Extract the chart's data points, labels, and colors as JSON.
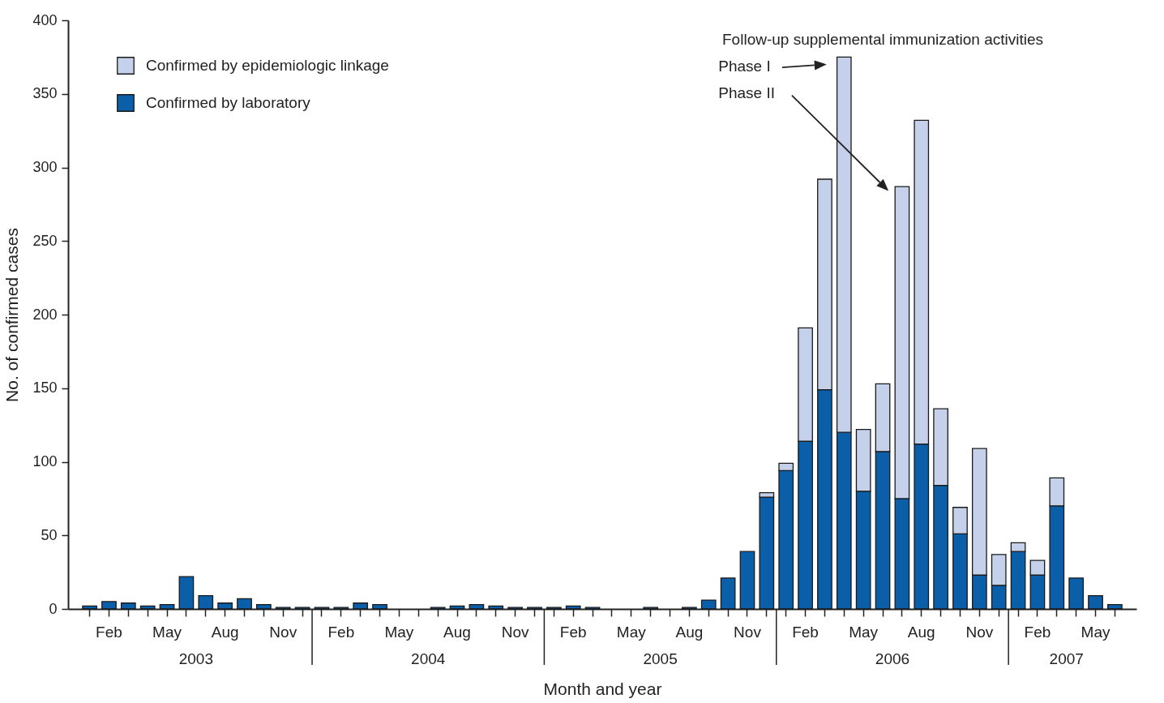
{
  "chart_data": {
    "type": "bar",
    "stacked": true,
    "xlabel": "Month and year",
    "ylabel": "No. of confirmed cases",
    "categories": [
      null,
      "Feb",
      null,
      null,
      "May",
      null,
      null,
      "Aug",
      null,
      null,
      "Nov",
      null,
      null,
      "Feb",
      null,
      null,
      "May",
      null,
      null,
      "Aug",
      null,
      null,
      "Nov",
      null,
      null,
      "Feb",
      null,
      null,
      "May",
      null,
      null,
      "Aug",
      null,
      null,
      "Nov",
      null,
      null,
      "Feb",
      null,
      null,
      "May",
      null,
      null,
      "Aug",
      null,
      null,
      "Nov",
      null,
      null,
      "Feb",
      null,
      null,
      "May",
      null
    ],
    "series": [
      {
        "name": "Confirmed by laboratory",
        "color": "#0b5ea8",
        "values": [
          2,
          5,
          4,
          2,
          3,
          22,
          9,
          4,
          7,
          3,
          1,
          1,
          1,
          1,
          4,
          3,
          null,
          null,
          1,
          2,
          3,
          2,
          1,
          1,
          1,
          2,
          1,
          null,
          null,
          1,
          null,
          1,
          6,
          21,
          39,
          76,
          94,
          114,
          149,
          120,
          80,
          107,
          75,
          112,
          84,
          51,
          23,
          16,
          39,
          23,
          70,
          21,
          9,
          3
        ]
      },
      {
        "name": "Confirmed by epidemiologic linkage",
        "color": "#c5d0ea",
        "values": [
          null,
          null,
          null,
          null,
          null,
          null,
          null,
          null,
          null,
          null,
          null,
          null,
          null,
          null,
          null,
          null,
          null,
          null,
          null,
          null,
          null,
          null,
          null,
          null,
          null,
          null,
          null,
          null,
          null,
          null,
          null,
          null,
          null,
          null,
          null,
          3,
          5,
          77,
          143,
          255,
          42,
          46,
          212,
          220,
          52,
          18,
          86,
          21,
          6,
          10,
          19,
          null,
          null,
          null
        ]
      }
    ],
    "ylim": [
      0,
      400
    ],
    "yticks": [
      0,
      50,
      100,
      150,
      200,
      250,
      300,
      350,
      400
    ],
    "legend": "top left",
    "annotations": [
      "Follow-up supplemental immunization activities",
      "Phase I",
      "Phase II",
      "2003",
      "2004",
      "2005",
      "2006",
      "2007"
    ]
  }
}
